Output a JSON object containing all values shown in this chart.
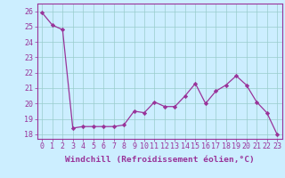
{
  "x": [
    0,
    1,
    2,
    3,
    4,
    5,
    6,
    7,
    8,
    9,
    10,
    11,
    12,
    13,
    14,
    15,
    16,
    17,
    18,
    19,
    20,
    21,
    22,
    23
  ],
  "y": [
    25.9,
    25.1,
    24.8,
    18.4,
    18.5,
    18.5,
    18.5,
    18.5,
    18.6,
    19.5,
    19.4,
    20.1,
    19.8,
    19.8,
    20.5,
    21.3,
    20.0,
    20.8,
    21.2,
    21.8,
    21.2,
    20.1,
    19.4,
    18.0
  ],
  "line_color": "#993399",
  "marker": "D",
  "marker_size": 2.2,
  "bg_color": "#cceeff",
  "grid_color": "#99cccc",
  "xlabel": "Windchill (Refroidissement éolien,°C)",
  "xtick_labels": [
    "0",
    "1",
    "2",
    "3",
    "4",
    "5",
    "6",
    "7",
    "8",
    "9",
    "10",
    "11",
    "12",
    "13",
    "14",
    "15",
    "16",
    "17",
    "18",
    "19",
    "20",
    "21",
    "22",
    "23"
  ],
  "ylim": [
    17.7,
    26.5
  ],
  "yticks": [
    18,
    19,
    20,
    21,
    22,
    23,
    24,
    25,
    26
  ],
  "xlabel_fontsize": 6.8,
  "tick_fontsize": 6.0,
  "linewidth": 0.9
}
